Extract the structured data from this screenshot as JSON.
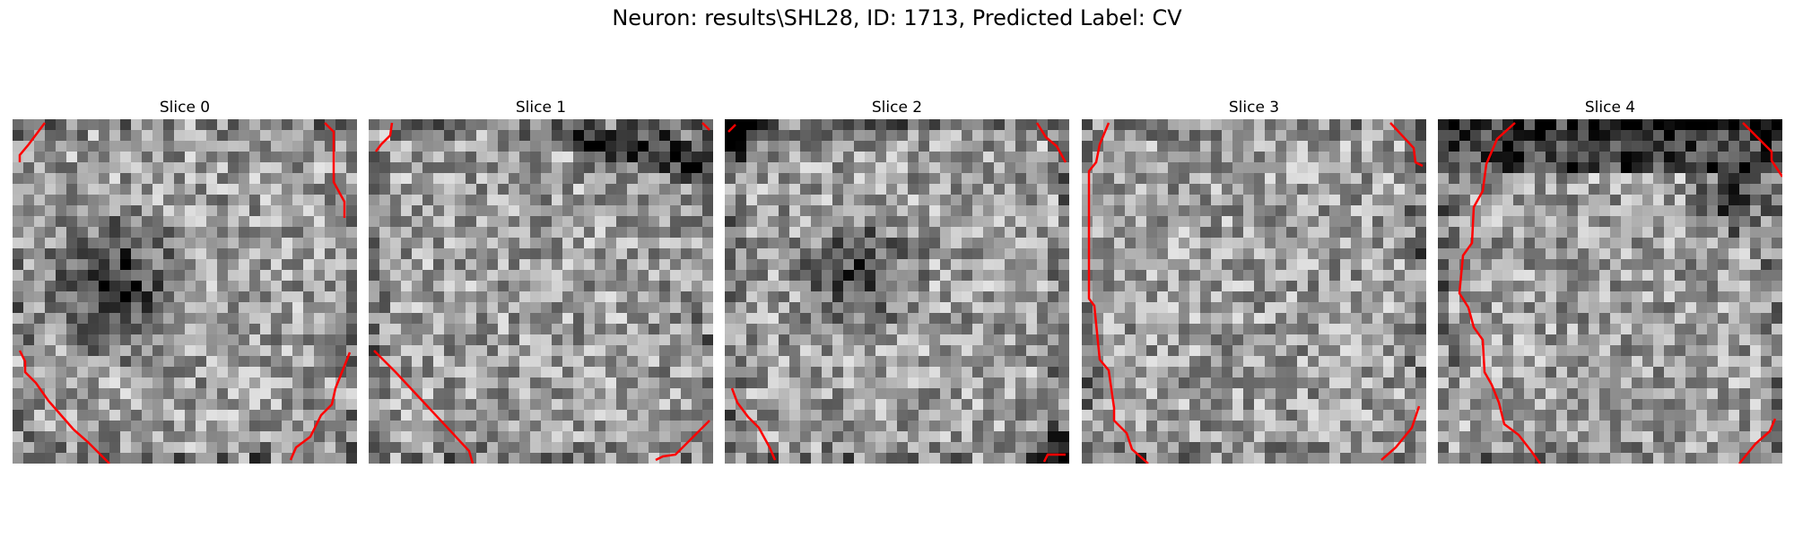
{
  "figure": {
    "title": "Neuron: results\\SHL28, ID: 1713, Predicted Label: CV"
  },
  "panels": [
    {
      "title": "Slice 0",
      "seed": 11,
      "dark_blob": "lower-left-center"
    },
    {
      "title": "Slice 1",
      "seed": 23,
      "dark_blob": "upper-right-arc"
    },
    {
      "title": "Slice 2",
      "seed": 37,
      "dark_blob": "center"
    },
    {
      "title": "Slice 3",
      "seed": 41,
      "dark_blob": "none"
    },
    {
      "title": "Slice 4",
      "seed": 53,
      "dark_blob": "upper-band"
    }
  ],
  "colors": {
    "contour": "#ff0000",
    "image_low": "#000000",
    "image_high": "#ffffff"
  }
}
